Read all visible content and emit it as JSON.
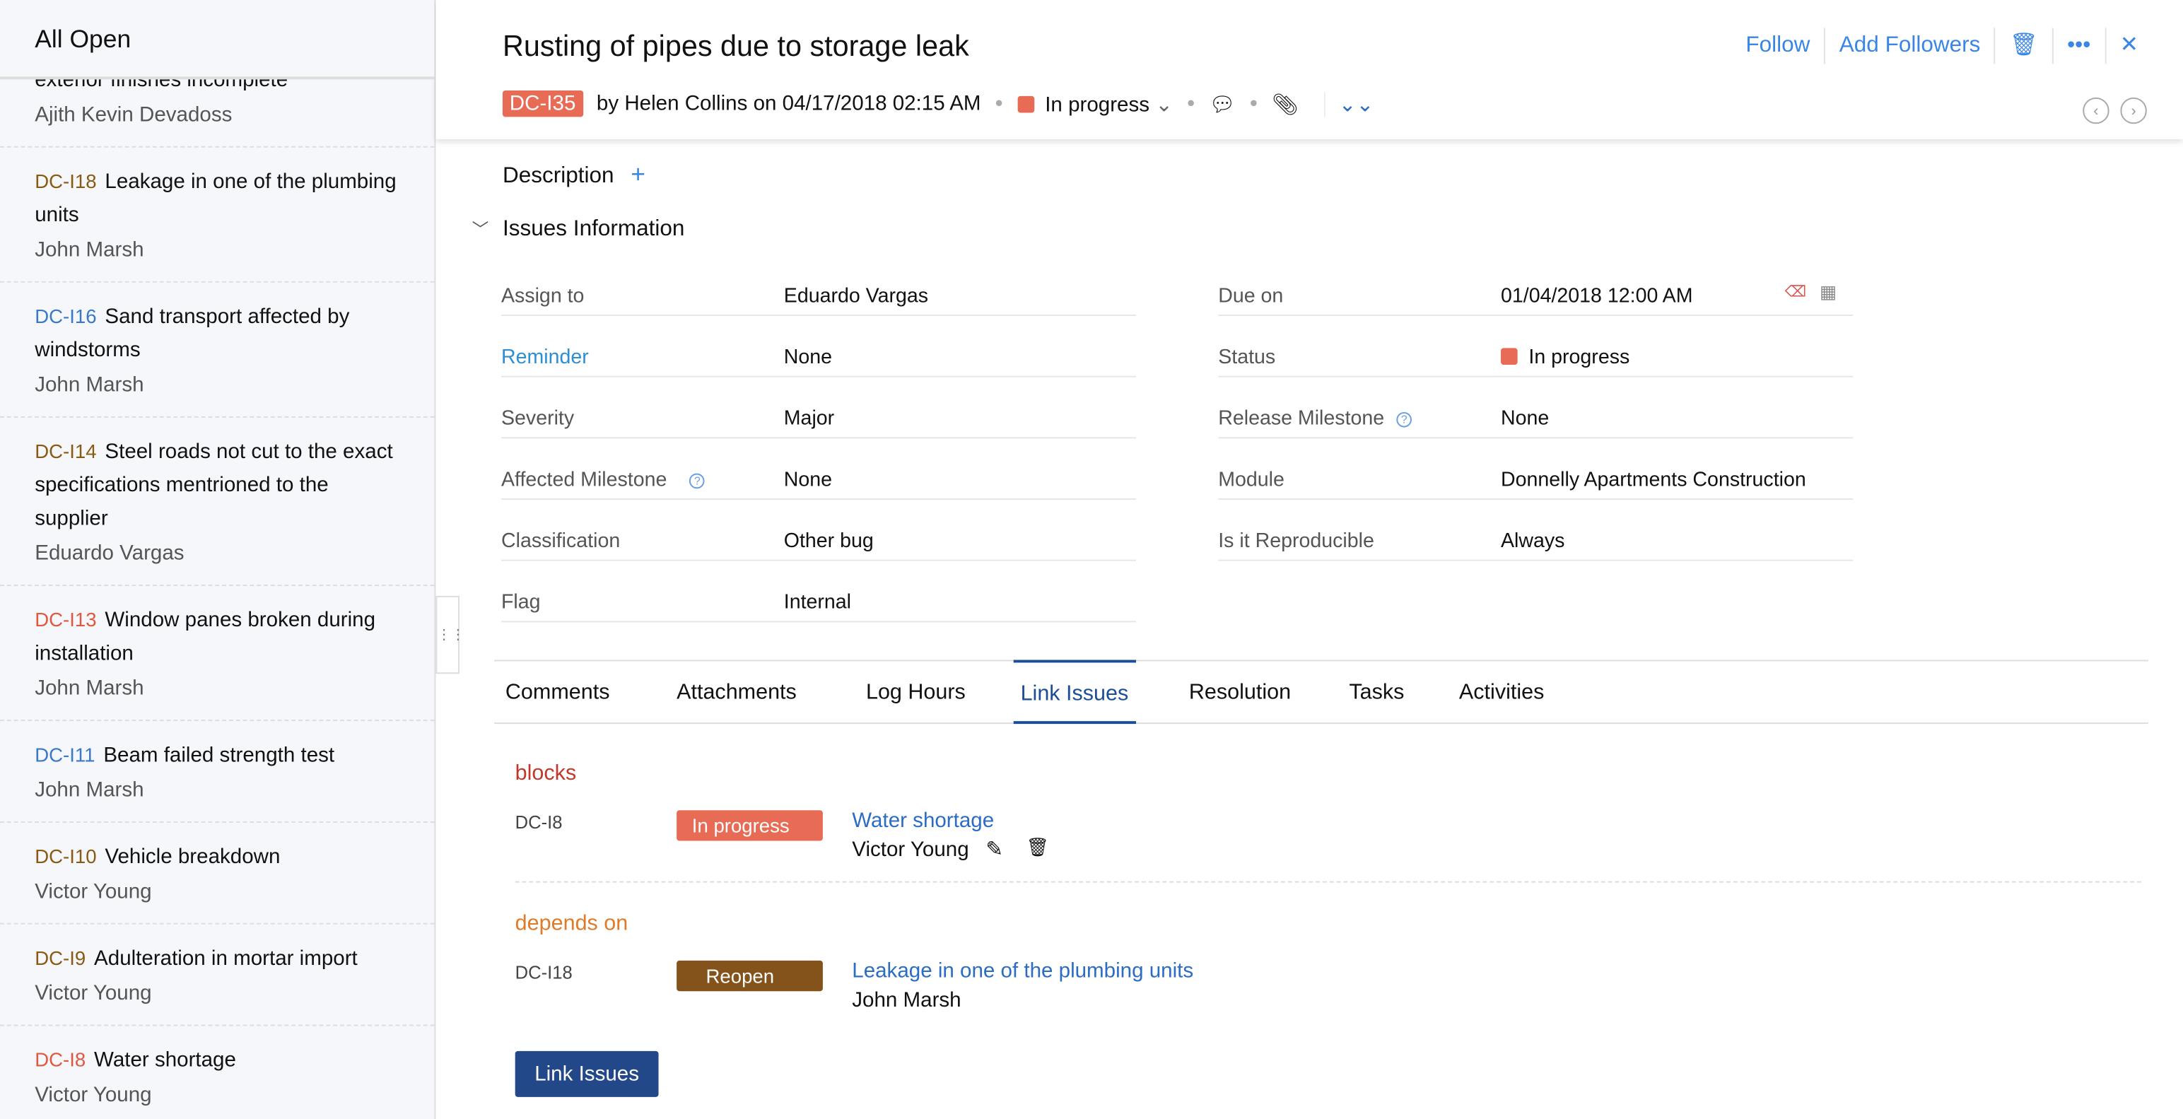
{
  "sidebar": {
    "title": "All Open",
    "items": [
      {
        "id": "",
        "title": "exterior finishes incomplete",
        "name": "Ajith Kevin Devadoss",
        "color": "#7a4a12"
      },
      {
        "id": "DC-I18",
        "title": "Leakage in one of the plumbing units",
        "name": "John Marsh",
        "color": "#8a5a12"
      },
      {
        "id": "DC-I16",
        "title": "Sand transport affected by windstorms",
        "name": "John Marsh",
        "color": "#3a78c9"
      },
      {
        "id": "DC-I14",
        "title": "Steel roads not cut to the exact specifications mentrioned to the supplier",
        "name": "Eduardo Vargas",
        "color": "#8a5a12"
      },
      {
        "id": "DC-I13",
        "title": "Window panes broken during installation",
        "name": "John Marsh",
        "color": "#e2583e"
      },
      {
        "id": "DC-I11",
        "title": "Beam failed strength test",
        "name": "John Marsh",
        "color": "#3a78c9"
      },
      {
        "id": "DC-I10",
        "title": "Vehicle breakdown",
        "name": "Victor Young",
        "color": "#8a5a12"
      },
      {
        "id": "DC-I9",
        "title": "Adulteration in mortar import",
        "name": "Victor Young",
        "color": "#8a5a12"
      },
      {
        "id": "DC-I8",
        "title": "Water shortage",
        "name": "Victor Young",
        "color": "#e2583e"
      }
    ]
  },
  "header": {
    "title": "Rusting of pipes due to storage leak",
    "follow": "Follow",
    "add_followers": "Add Followers",
    "id": "DC-I35",
    "byline": "by Helen Collins on 04/17/2018 02:15 AM",
    "status": "In progress",
    "status_color": "#e86c55"
  },
  "description": {
    "label": "Description",
    "add": "+"
  },
  "issues_info": {
    "label": "Issues Information",
    "left": [
      {
        "label": "Assign to",
        "value": "Eduardo Vargas"
      },
      {
        "label": "Reminder",
        "value": "None",
        "link": true
      },
      {
        "label": "Severity",
        "value": "Major"
      },
      {
        "label": "Affected Milestone",
        "value": "None",
        "help": true
      },
      {
        "label": "Classification",
        "value": "Other bug"
      },
      {
        "label": "Flag",
        "value": "Internal"
      }
    ],
    "right": [
      {
        "label": "Due on",
        "value": "01/04/2018 12:00 AM"
      },
      {
        "label": "Status",
        "value": "In progress"
      },
      {
        "label": "Release Milestone",
        "value": "None",
        "help": true
      },
      {
        "label": "Module",
        "value": "Donnelly Apartments Construction"
      },
      {
        "label": "Is it Reproducible",
        "value": "Always"
      }
    ]
  },
  "tabs": [
    "Comments",
    "Attachments",
    "Log Hours",
    "Link Issues",
    "Resolution",
    "Tasks",
    "Activities"
  ],
  "active_tab": "Link Issues",
  "links": [
    {
      "relation": "blocks",
      "relation_color": "#c0392b",
      "id": "DC-I8",
      "status": "In progress",
      "status_color": "#e86c55",
      "title": "Water shortage",
      "owner": "Victor Young"
    },
    {
      "relation": "depends on",
      "relation_color": "#e07b2a",
      "id": "DC-I18",
      "status": "Reopen",
      "status_color": "#84521b",
      "title": "Leakage in one of the plumbing units",
      "owner": "John Marsh"
    }
  ],
  "link_button": "Link Issues"
}
